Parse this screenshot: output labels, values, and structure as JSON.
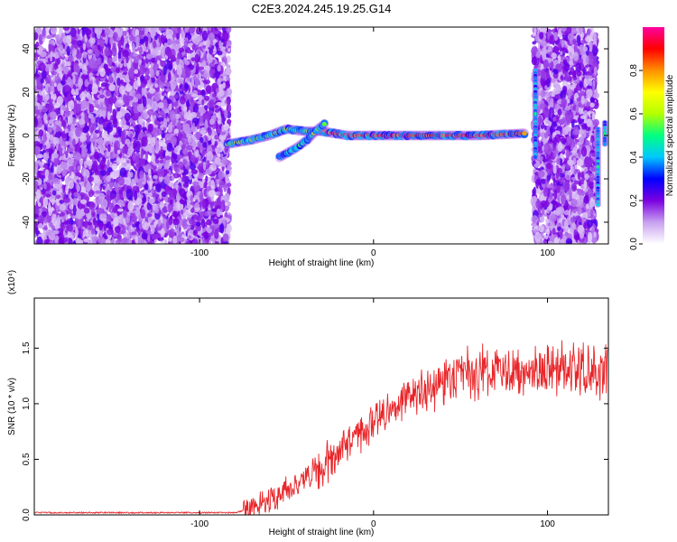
{
  "title": "C2E3.2024.245.19.25.G14",
  "chart_data": [
    {
      "type": "heatmap",
      "xlabel": "Height of straight line (km)",
      "ylabel": "Frequency (Hz)",
      "xlim": [
        -195,
        135
      ],
      "ylim": [
        -50,
        50
      ],
      "xticks": [
        -100,
        0,
        100
      ],
      "yticks": [
        -40,
        -20,
        0,
        20,
        40
      ],
      "colorbar": {
        "label": "Normalized spectral amplitude",
        "range": [
          0,
          1
        ],
        "ticks": [
          "0.0",
          "0.2",
          "0.4",
          "0.6",
          "0.8"
        ],
        "colors": [
          "#ffffff",
          "#c8a0f0",
          "#7b00e0",
          "#0000ff",
          "#00c8ff",
          "#00ff80",
          "#b4ff00",
          "#ffff00",
          "#ff9000",
          "#ff0000",
          "#ff00a0"
        ]
      },
      "features": [
        {
          "name": "noise",
          "x_range": [
            -195,
            -83
          ]
        },
        {
          "name": "trace",
          "points": [
            [
              -84,
              -4
            ],
            [
              -70,
              -2
            ],
            [
              -60,
              0
            ],
            [
              -50,
              3
            ],
            [
              -40,
              2
            ],
            [
              -30,
              2
            ],
            [
              -15,
              0
            ],
            [
              0,
              0
            ],
            [
              30,
              0
            ],
            [
              60,
              0
            ],
            [
              88,
              1
            ]
          ]
        },
        {
          "name": "branch",
          "points": [
            [
              -54,
              -10
            ],
            [
              -45,
              -6
            ],
            [
              -38,
              -2
            ],
            [
              -32,
              3
            ],
            [
              -27,
              6
            ]
          ]
        },
        {
          "name": "noise",
          "x_range": [
            92,
            128
          ]
        },
        {
          "name": "spike",
          "x": 93,
          "y_range": [
            -10,
            30
          ]
        },
        {
          "name": "spike",
          "x": 129,
          "y_range": [
            -32,
            3
          ]
        },
        {
          "name": "spike",
          "x": 133,
          "y_range": [
            -4,
            6
          ]
        }
      ]
    },
    {
      "type": "line",
      "xlabel": "Height of straight line (km)",
      "ylabel": "SNR (10 * v/v)",
      "yscale_label": "(x10⁴)",
      "xlim": [
        -195,
        135
      ],
      "ylim": [
        0,
        1.95
      ],
      "xticks": [
        -100,
        0,
        100
      ],
      "yticks": [
        "0.0",
        "0.5",
        "1.0",
        "1.5"
      ],
      "color": "#e8262a",
      "trend": {
        "x": [
          -195,
          -140,
          -100,
          -80,
          -72,
          -60,
          -50,
          -40,
          -30,
          -20,
          -10,
          0,
          10,
          20,
          30,
          40,
          50,
          60,
          80,
          100,
          120,
          135
        ],
        "y": [
          0.02,
          0.02,
          0.02,
          0.02,
          0.05,
          0.14,
          0.22,
          0.3,
          0.42,
          0.56,
          0.72,
          0.86,
          0.97,
          1.06,
          1.14,
          1.2,
          1.25,
          1.27,
          1.29,
          1.31,
          1.31,
          1.3
        ]
      }
    }
  ]
}
